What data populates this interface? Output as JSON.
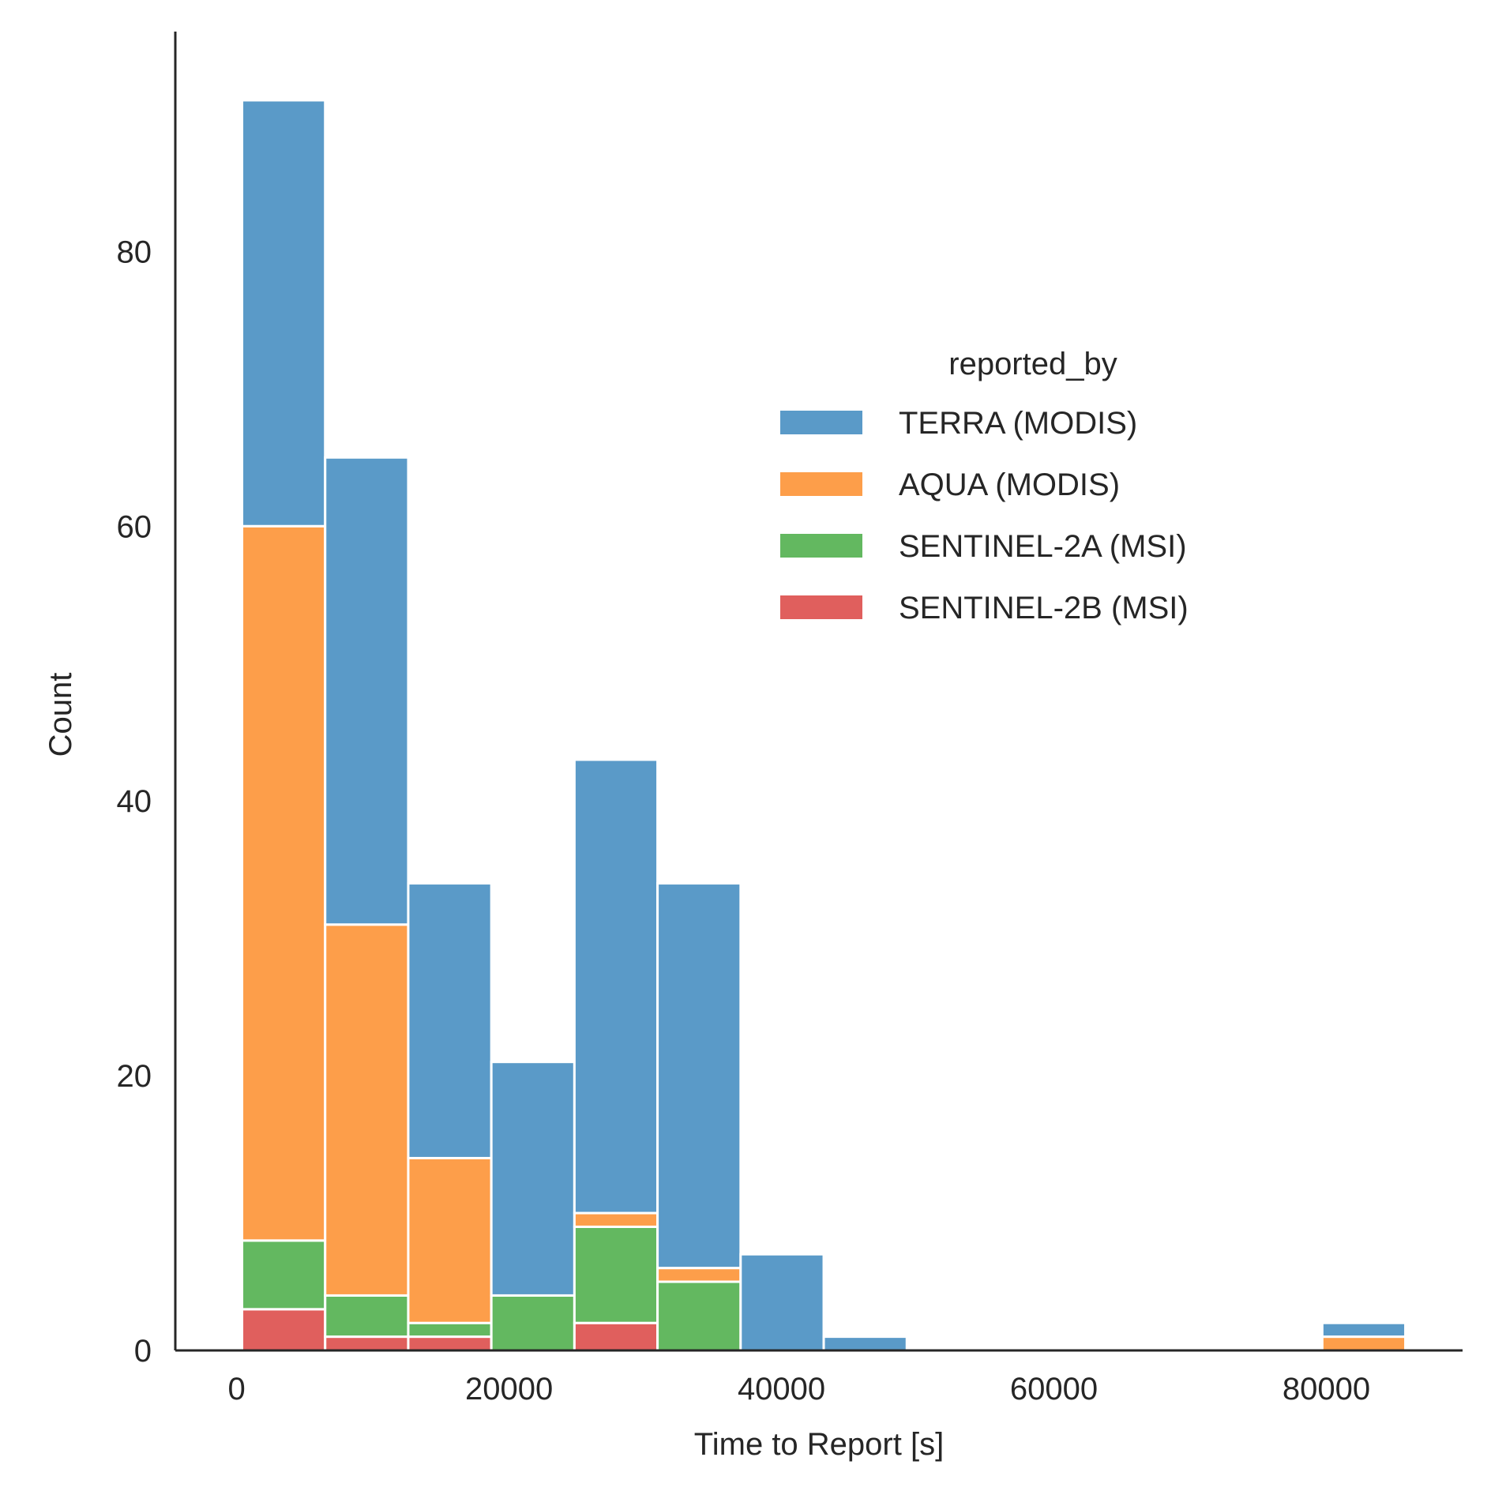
{
  "chart_data": {
    "type": "bar",
    "stacked": true,
    "title": "",
    "xlabel": "Time to Report [s]",
    "ylabel": "Count",
    "xlim": [
      -4500,
      90000
    ],
    "ylim": [
      0,
      96
    ],
    "x_ticks": [
      0,
      20000,
      40000,
      60000,
      80000
    ],
    "y_ticks": [
      0,
      20,
      40,
      60,
      80
    ],
    "grid": false,
    "legend": {
      "title": "reported_by",
      "placement": "center-right"
    },
    "bin_edges": [
      400,
      6500,
      12600,
      18700,
      24800,
      30900,
      37000,
      43100,
      49200,
      55300,
      61400,
      67500,
      73600,
      79700,
      85800
    ],
    "series": [
      {
        "name": "SENTINEL-2B (MSI)",
        "color": "#e05f5d",
        "values": [
          3,
          1,
          1,
          0,
          2,
          0,
          0,
          0,
          0,
          0,
          0,
          0,
          0,
          0
        ]
      },
      {
        "name": "SENTINEL-2A (MSI)",
        "color": "#63b860",
        "values": [
          5,
          3,
          1,
          4,
          7,
          5,
          0,
          0,
          0,
          0,
          0,
          0,
          0,
          0
        ]
      },
      {
        "name": "AQUA (MODIS)",
        "color": "#fd9e4a",
        "values": [
          52,
          27,
          12,
          0,
          1,
          1,
          0,
          0,
          0,
          0,
          0,
          0,
          0,
          1
        ]
      },
      {
        "name": "TERRA (MODIS)",
        "color": "#5a9ac8",
        "values": [
          31,
          34,
          20,
          17,
          33,
          28,
          7,
          1,
          0,
          0,
          0,
          0,
          0,
          1
        ]
      }
    ]
  }
}
